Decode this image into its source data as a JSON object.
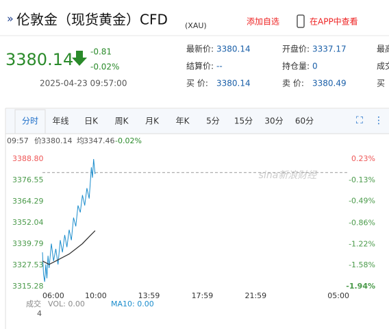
{
  "header": {
    "prefix": "»",
    "title": "伦敦金（现货黄金）CFD",
    "code": "(XAU)",
    "add": "添加自选",
    "app": "在APP中查看"
  },
  "quote": {
    "price": "3380.14",
    "change": "-0.81",
    "change_pct": "-0.02%",
    "time": "2025-04-23 09:57:00"
  },
  "info": [
    [
      "最新价:",
      "3380.14",
      "开盘价:",
      "3337.17",
      "最高"
    ],
    [
      "结算价:",
      "--",
      "持仓量:",
      "0",
      "成交"
    ],
    [
      "买  价:",
      "3380.14",
      "卖  价:",
      "3380.49",
      "买"
    ]
  ],
  "tabs": [
    "分时",
    "年线",
    "日K",
    "周K",
    "月K",
    "年K",
    "5分",
    "15分",
    "30分",
    "60分"
  ],
  "chart_data": {
    "type": "line",
    "info": {
      "time": "09:57",
      "price_label": "价",
      "price": "3380.14",
      "avg_label": "均",
      "avg": "3347.46",
      "pct": "-0.02%"
    },
    "watermark": "sina新浪财经",
    "xticks": [
      "06:00",
      "10:00",
      "13:59",
      "17:59",
      "21:59",
      "05:00"
    ],
    "series": [
      {
        "color": "#1a8ccc",
        "x": [
          "06:00",
          "06:05",
          "06:10",
          "06:15",
          "06:20",
          "06:25",
          "06:30",
          "06:40",
          "06:50",
          "07:00",
          "07:10",
          "07:20",
          "07:30",
          "07:40",
          "07:50",
          "08:00",
          "08:10",
          "08:20",
          "08:30",
          "08:40",
          "08:50",
          "09:00",
          "09:10",
          "09:20",
          "09:30",
          "09:40",
          "09:45",
          "09:50",
          "09:55",
          "09:57"
        ],
        "values": [
          3335,
          3322,
          3318,
          3328,
          3320,
          3333,
          3326,
          3340,
          3330,
          3337,
          3328,
          3342,
          3335,
          3345,
          3338,
          3348,
          3342,
          3355,
          3350,
          3362,
          3358,
          3368,
          3362,
          3372,
          3366,
          3384,
          3378,
          3388.8,
          3382,
          3380.14
        ]
      },
      {
        "color": "#333333",
        "x": [
          "06:00",
          "06:30",
          "07:00",
          "07:30",
          "08:00",
          "08:30",
          "09:00",
          "09:30",
          "09:57"
        ],
        "values": [
          3330,
          3328,
          3330,
          3332,
          3334,
          3337,
          3340,
          3344,
          3347.46
        ]
      }
    ],
    "ylim": [
      3315.28,
      3388.8
    ],
    "yticks": [
      {
        "value": 3388.8,
        "label": "3388.80"
      },
      3376.55,
      3364.29,
      3352.04,
      3339.79,
      3327.53,
      3315.28
    ],
    "y2lim": [
      -1.94,
      0.23
    ],
    "y2ticks": [
      {
        "value": 0.23,
        "label": "0.23%"
      },
      {
        "value": -0.13,
        "label": "-0.13%"
      },
      {
        "value": -0.49,
        "label": "-0.49%"
      },
      {
        "value": -0.86,
        "label": "-0.86%"
      },
      {
        "value": -1.22,
        "label": "-1.22%"
      },
      {
        "value": -1.58,
        "label": "-1.58%"
      },
      {
        "value": -1.94,
        "label": "-1.94%"
      }
    ],
    "volume": {
      "label": "成交",
      "count": "4",
      "vol": "VOL: 0.00",
      "ma": "MA10: 0.00"
    }
  }
}
